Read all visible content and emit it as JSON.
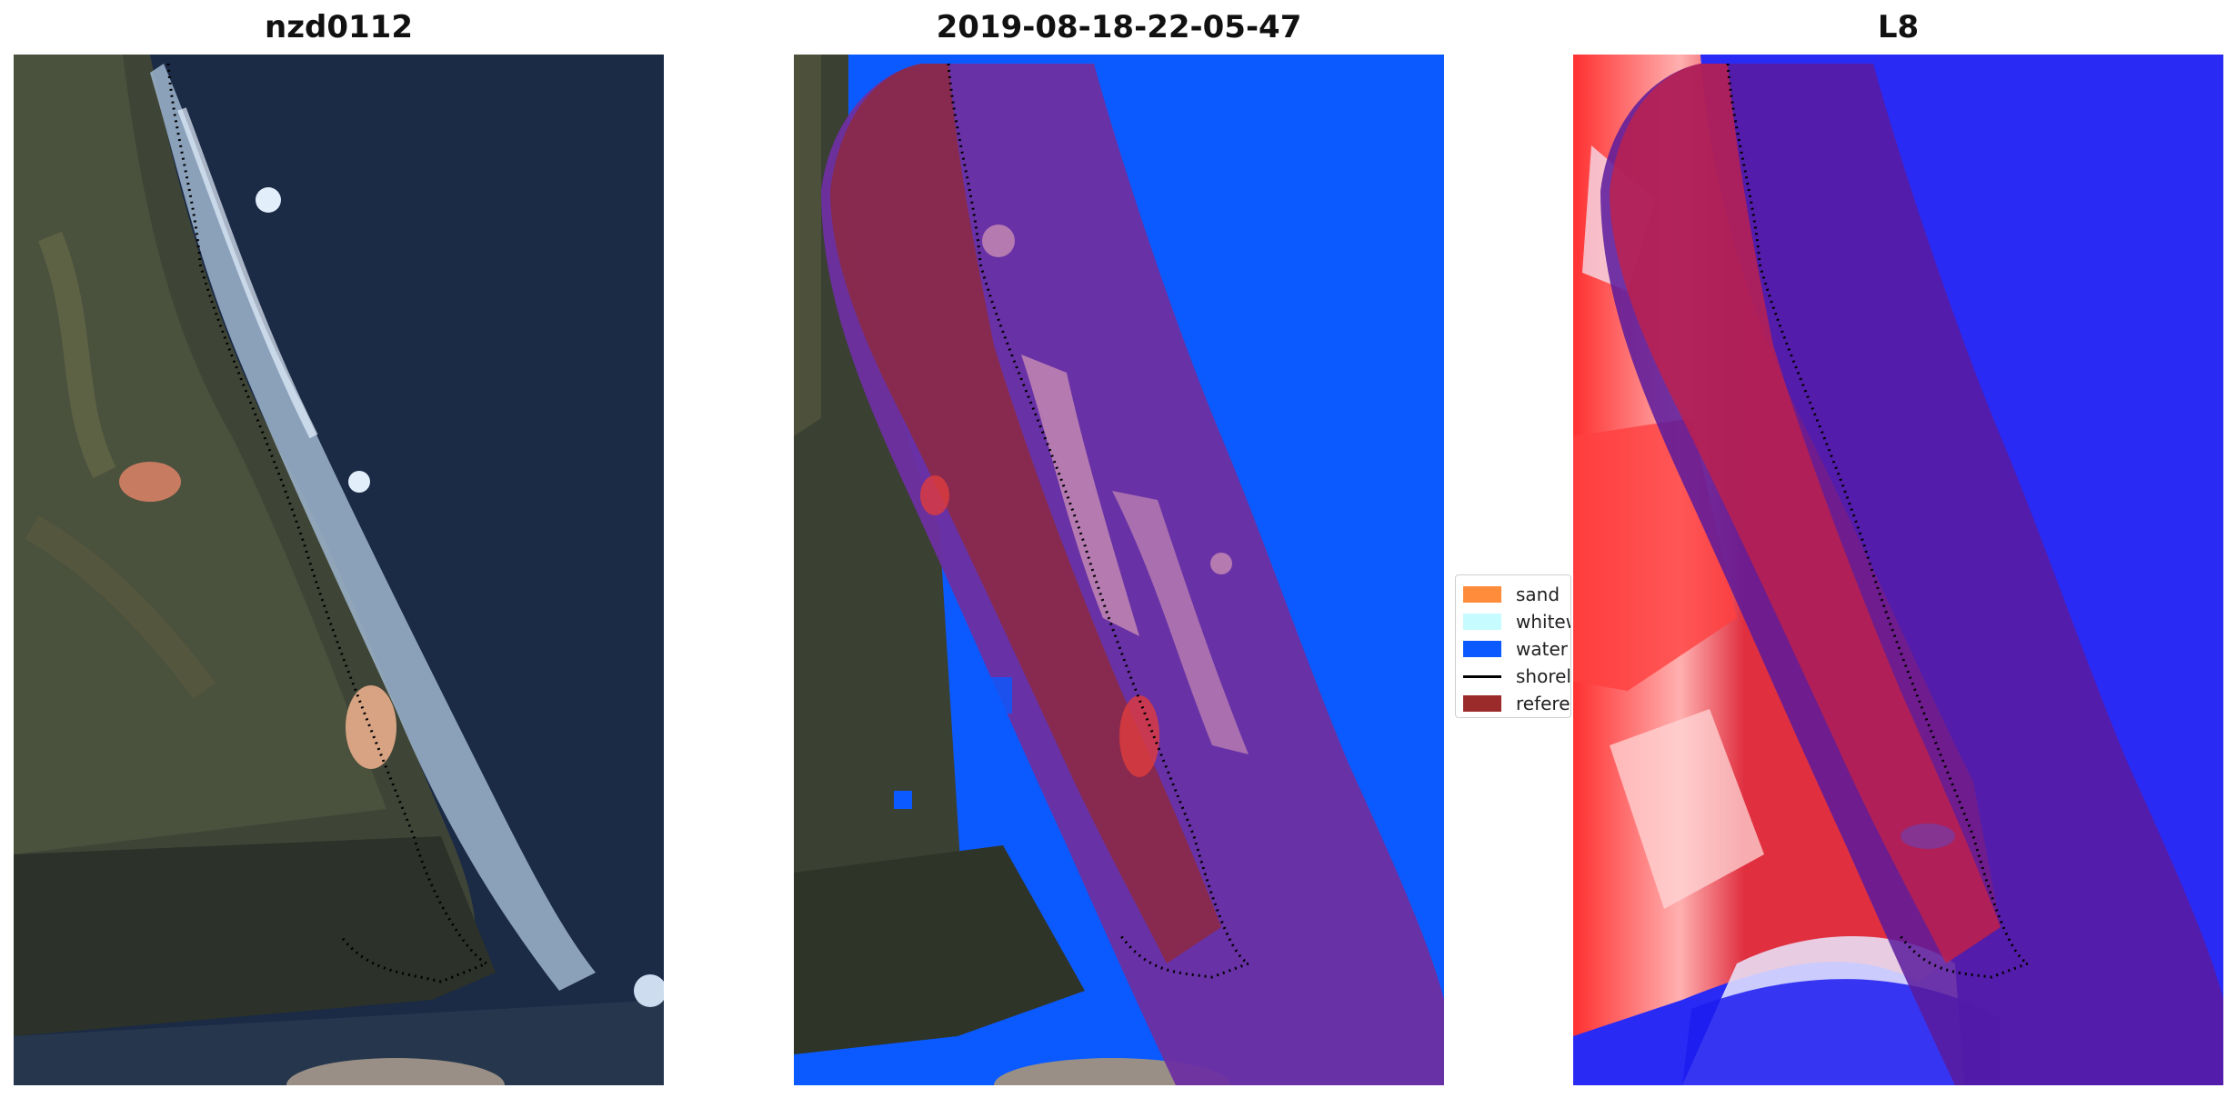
{
  "panels": [
    {
      "title": "nzd0112"
    },
    {
      "title": "2019-08-18-22-05-47"
    },
    {
      "title": "L8"
    }
  ],
  "legend": {
    "items": [
      {
        "label": "sand",
        "color": "#ff8c3a"
      },
      {
        "label": "whitewater",
        "color": "#c6fbff"
      },
      {
        "label": "water",
        "color": "#0a5aff"
      },
      {
        "label": "shoreline",
        "color": "#000000"
      },
      {
        "label": "reference shoreline buffer",
        "color": "#9b2a2a"
      }
    ]
  },
  "colors": {
    "water_class": "#0a5aff",
    "buffer": "#7a1f3a",
    "sea_dark": "#1b2a45",
    "index_high": "#2020ff",
    "index_low": "#ff2020"
  }
}
